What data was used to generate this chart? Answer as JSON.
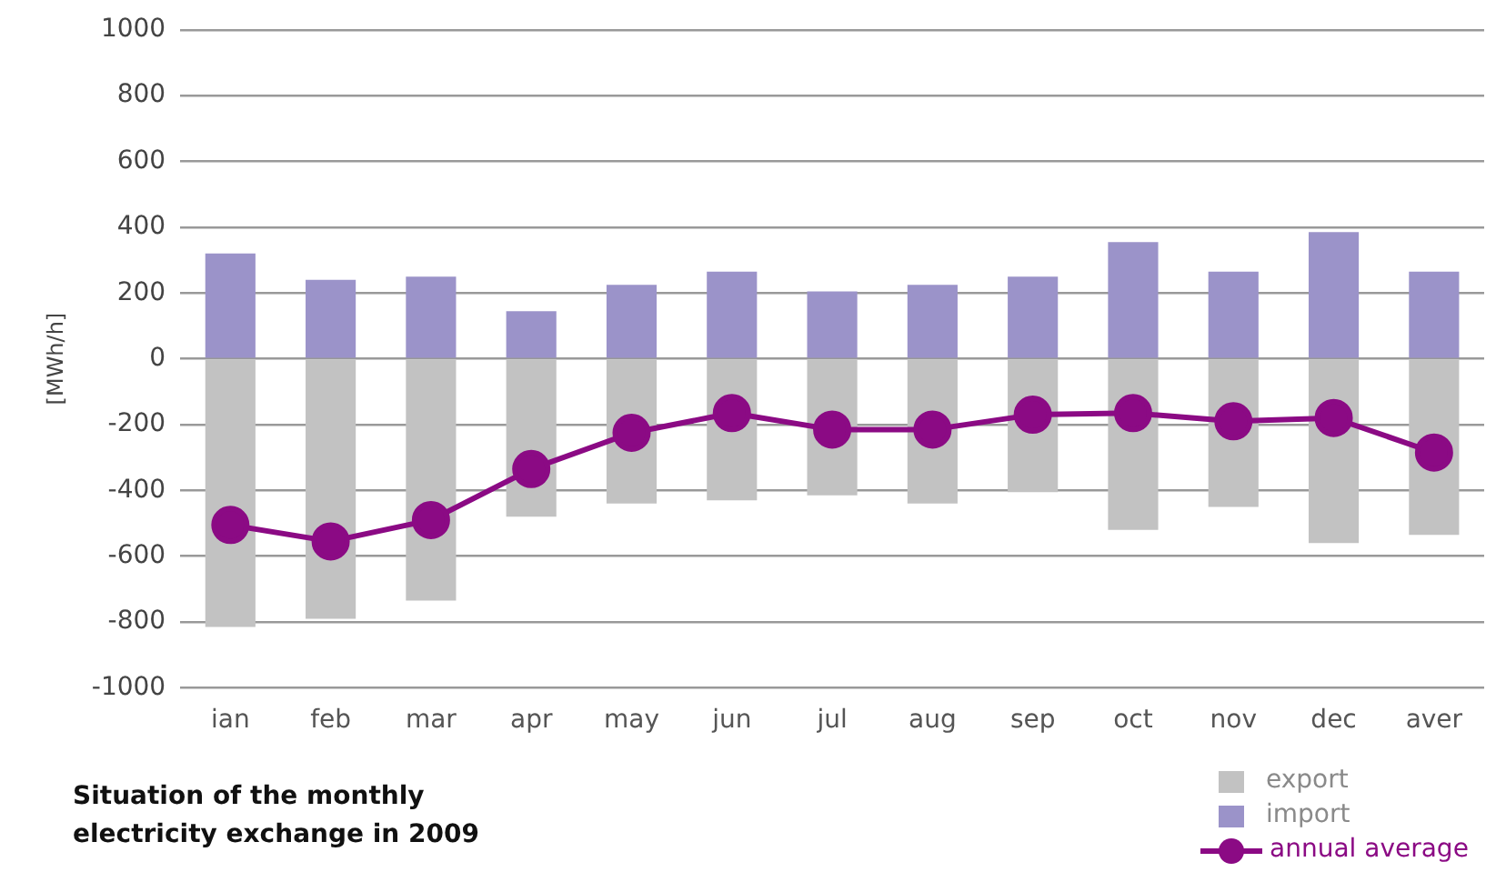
{
  "chart_data": {
    "type": "bar",
    "title": "Situation of the monthly electricity exchange in 2009",
    "ylabel": "[MWh/h]",
    "categories": [
      "ian",
      "feb",
      "mar",
      "apr",
      "may",
      "jun",
      "jul",
      "aug",
      "sep",
      "oct",
      "nov",
      "dec",
      "aver"
    ],
    "stacked": true,
    "series": [
      {
        "name": "export",
        "color": "#c2c2c2",
        "values": [
          -815,
          -790,
          -735,
          -480,
          -440,
          -430,
          -415,
          -440,
          -405,
          -520,
          -450,
          -560,
          -535
        ]
      },
      {
        "name": "import",
        "color": "#9b93c9",
        "values": [
          320,
          240,
          250,
          145,
          225,
          265,
          205,
          225,
          250,
          355,
          265,
          385,
          265
        ]
      },
      {
        "name": "annual average",
        "type": "line",
        "color": "#8b0a84",
        "values": [
          -505,
          -555,
          -490,
          -335,
          -225,
          -165,
          -215,
          -215,
          -170,
          -165,
          -190,
          -180,
          -285
        ]
      }
    ],
    "ylim": [
      -1000,
      1000
    ],
    "yticks": [
      -1000,
      -800,
      -600,
      -400,
      -200,
      0,
      200,
      400,
      600,
      800,
      1000
    ],
    "grid": "y",
    "legend": "bottom right",
    "marker": "circle",
    "line_style": "solid"
  }
}
